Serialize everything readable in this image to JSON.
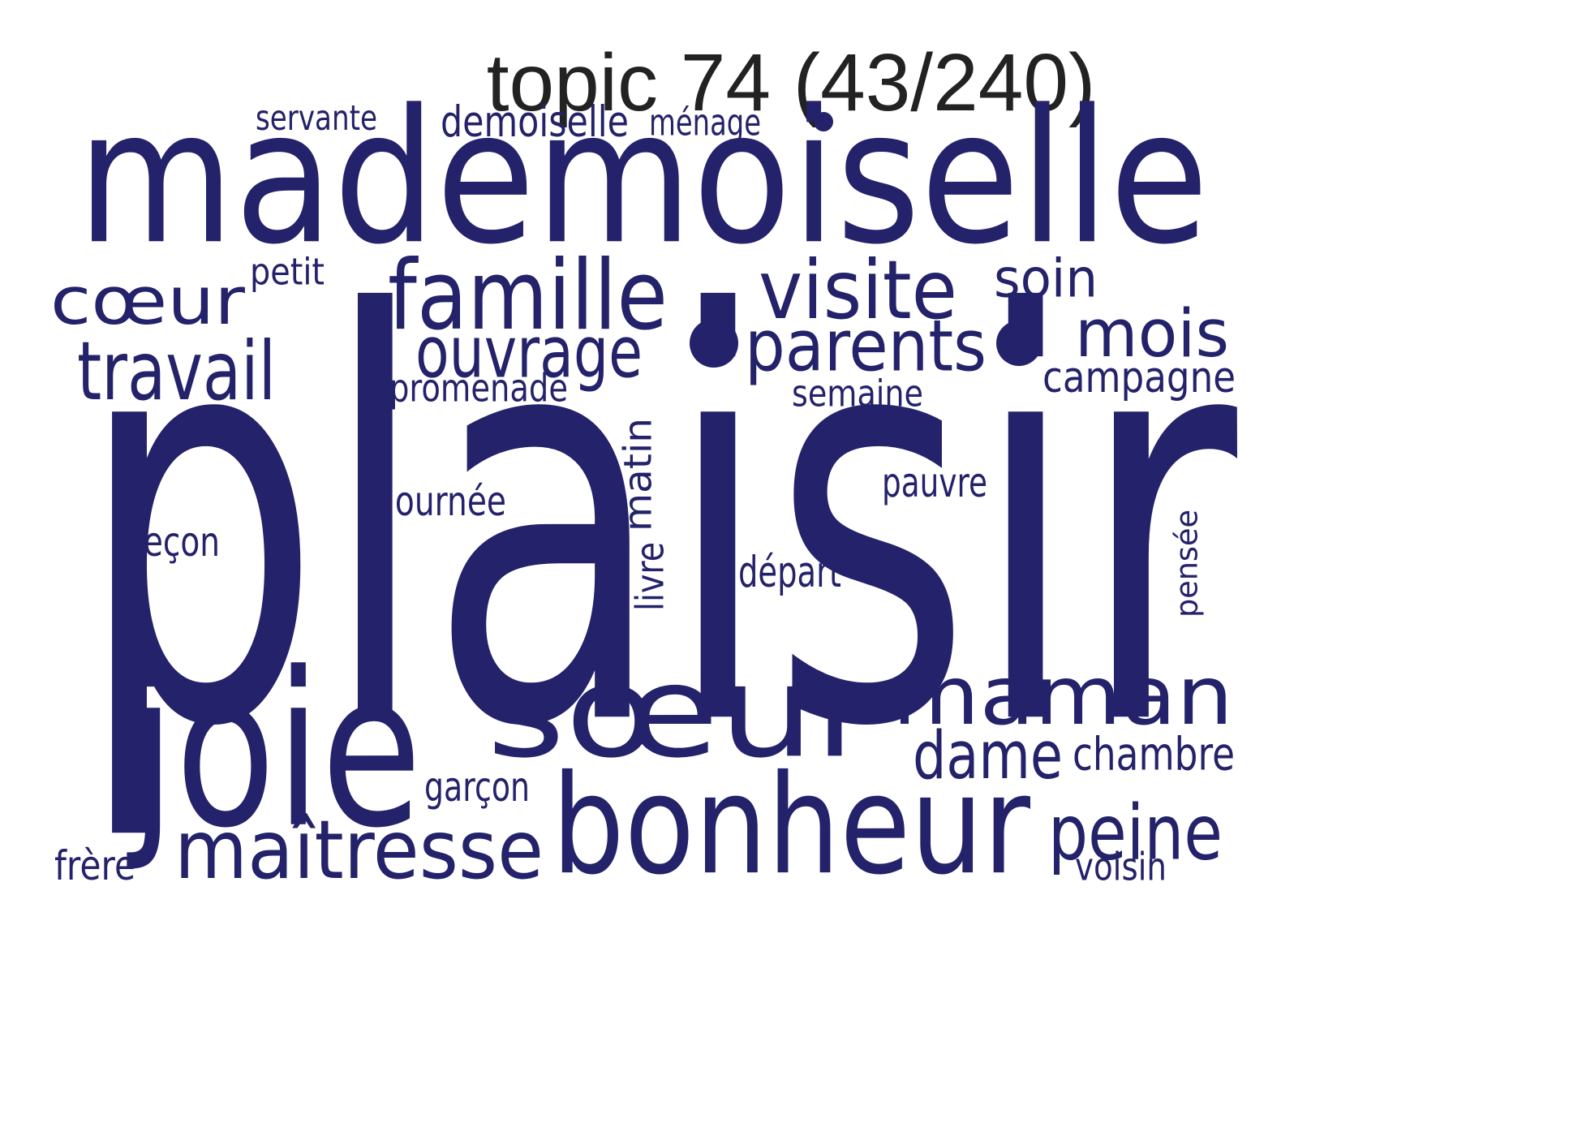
{
  "title": "topic 74 (43/240)",
  "word_color": "#23226a",
  "title_color": "#222222",
  "words": [
    {
      "text": "plaisir",
      "weight": 1.0,
      "vertical": false
    },
    {
      "text": "mademoiselle",
      "weight": 0.48,
      "vertical": false
    },
    {
      "text": "sœur",
      "weight": 0.34,
      "vertical": false
    },
    {
      "text": "joie",
      "weight": 0.32,
      "vertical": false
    },
    {
      "text": "bonheur",
      "weight": 0.26,
      "vertical": false
    },
    {
      "text": "maman",
      "weight": 0.22,
      "vertical": false
    },
    {
      "text": "famille",
      "weight": 0.2,
      "vertical": false
    },
    {
      "text": "maîtresse",
      "weight": 0.18,
      "vertical": false
    },
    {
      "text": "parents",
      "weight": 0.17,
      "vertical": false
    },
    {
      "text": "visite",
      "weight": 0.17,
      "vertical": false
    },
    {
      "text": "peine",
      "weight": 0.17,
      "vertical": false
    },
    {
      "text": "cœur",
      "weight": 0.16,
      "vertical": false
    },
    {
      "text": "travail",
      "weight": 0.16,
      "vertical": false
    },
    {
      "text": "mois",
      "weight": 0.16,
      "vertical": false
    },
    {
      "text": "ouvrage",
      "weight": 0.13,
      "vertical": false
    },
    {
      "text": "dame",
      "weight": 0.13,
      "vertical": false
    },
    {
      "text": "soin",
      "weight": 0.13,
      "vertical": false
    },
    {
      "text": "matin",
      "weight": 0.09,
      "vertical": true
    },
    {
      "text": "chambre",
      "weight": 0.08,
      "vertical": false
    },
    {
      "text": "campagne",
      "weight": 0.08,
      "vertical": false
    },
    {
      "text": "demoiselle",
      "weight": 0.08,
      "vertical": false
    },
    {
      "text": "promenade",
      "weight": 0.07,
      "vertical": false
    },
    {
      "text": "leçon",
      "weight": 0.07,
      "vertical": false
    },
    {
      "text": "journée",
      "weight": 0.07,
      "vertical": false
    },
    {
      "text": "départ",
      "weight": 0.07,
      "vertical": false
    },
    {
      "text": "garçon",
      "weight": 0.07,
      "vertical": false
    },
    {
      "text": "frère",
      "weight": 0.07,
      "vertical": false
    },
    {
      "text": "pauvre",
      "weight": 0.06,
      "vertical": false
    },
    {
      "text": "semaine",
      "weight": 0.06,
      "vertical": false
    },
    {
      "text": "voisin",
      "weight": 0.06,
      "vertical": false
    },
    {
      "text": "pensée",
      "weight": 0.06,
      "vertical": true
    },
    {
      "text": "livre",
      "weight": 0.06,
      "vertical": true
    },
    {
      "text": "petit",
      "weight": 0.05,
      "vertical": false
    },
    {
      "text": "servante",
      "weight": 0.05,
      "vertical": false
    },
    {
      "text": "ménage",
      "weight": 0.05,
      "vertical": false
    }
  ],
  "dots": [
    {
      "name": "dot-small"
    },
    {
      "name": "dot-left"
    },
    {
      "name": "dot-right"
    }
  ]
}
